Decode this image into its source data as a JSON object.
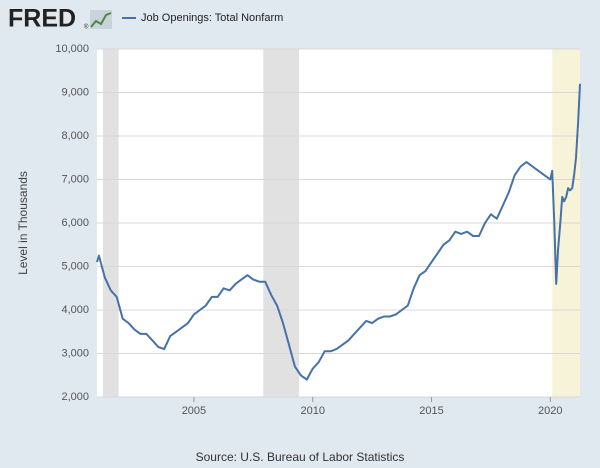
{
  "logo": "FRED",
  "logo_mark": "®",
  "chart_data": {
    "type": "line",
    "y_label": "Level in Thousands",
    "source": "Source: U.S. Bureau of Labor Statistics",
    "grid": true,
    "background": "#e1e9f0",
    "plot_background": "#ffffff",
    "recession_color": "#e1e1e1",
    "recessions": [
      [
        2001.17,
        2001.83
      ],
      [
        2007.92,
        2009.42
      ]
    ],
    "highlight_color": "#f6f3d9",
    "highlight": [
      2020.08,
      2021.25
    ],
    "xlim": [
      2000.92,
      2021.25
    ],
    "xticks": [
      2005,
      2010,
      2015,
      2020
    ],
    "ylim": [
      2000,
      10000
    ],
    "yticks": [
      {
        "value": 2000,
        "label": "2,000"
      },
      {
        "value": 3000,
        "label": "3,000"
      },
      {
        "value": 4000,
        "label": "4,000"
      },
      {
        "value": 5000,
        "label": "5,000"
      },
      {
        "value": 6000,
        "label": "6,000"
      },
      {
        "value": 7000,
        "label": "7,000"
      },
      {
        "value": 8000,
        "label": "8,000"
      },
      {
        "value": 9000,
        "label": "9,000"
      },
      {
        "value": 10000,
        "label": "10,000"
      }
    ],
    "x": [
      2000.92,
      2001.0,
      2001.25,
      2001.5,
      2001.75,
      2002.0,
      2002.25,
      2002.5,
      2002.75,
      2003.0,
      2003.25,
      2003.5,
      2003.75,
      2004.0,
      2004.25,
      2004.5,
      2004.75,
      2005.0,
      2005.25,
      2005.5,
      2005.75,
      2006.0,
      2006.25,
      2006.5,
      2006.75,
      2007.0,
      2007.25,
      2007.5,
      2007.75,
      2008.0,
      2008.25,
      2008.5,
      2008.75,
      2009.0,
      2009.25,
      2009.5,
      2009.75,
      2010.0,
      2010.25,
      2010.5,
      2010.75,
      2011.0,
      2011.25,
      2011.5,
      2011.75,
      2012.0,
      2012.25,
      2012.5,
      2012.75,
      2013.0,
      2013.25,
      2013.5,
      2013.75,
      2014.0,
      2014.25,
      2014.5,
      2014.75,
      2015.0,
      2015.25,
      2015.5,
      2015.75,
      2016.0,
      2016.25,
      2016.5,
      2016.75,
      2017.0,
      2017.25,
      2017.5,
      2017.75,
      2018.0,
      2018.25,
      2018.5,
      2018.75,
      2019.0,
      2019.25,
      2019.5,
      2019.75,
      2020.0,
      2020.08,
      2020.17,
      2020.25,
      2020.33,
      2020.42,
      2020.5,
      2020.58,
      2020.67,
      2020.75,
      2020.83,
      2020.92,
      2021.0,
      2021.08,
      2021.17,
      2021.25
    ],
    "series": [
      {
        "name": "Job Openings: Total Nonfarm",
        "color": "#4572a7",
        "values": [
          5100,
          5250,
          4750,
          4450,
          4300,
          3800,
          3700,
          3550,
          3450,
          3450,
          3300,
          3150,
          3100,
          3400,
          3500,
          3600,
          3700,
          3900,
          4000,
          4100,
          4300,
          4300,
          4500,
          4450,
          4600,
          4700,
          4800,
          4700,
          4650,
          4650,
          4350,
          4100,
          3700,
          3200,
          2700,
          2500,
          2400,
          2650,
          2800,
          3050,
          3050,
          3100,
          3200,
          3300,
          3450,
          3600,
          3750,
          3700,
          3800,
          3850,
          3850,
          3900,
          4000,
          4100,
          4500,
          4800,
          4900,
          5100,
          5300,
          5500,
          5600,
          5800,
          5750,
          5800,
          5700,
          5700,
          6000,
          6200,
          6100,
          6400,
          6700,
          7100,
          7300,
          7400,
          7300,
          7200,
          7100,
          7000,
          7200,
          6000,
          4600,
          5400,
          6000,
          6600,
          6500,
          6600,
          6800,
          6750,
          6800,
          7100,
          7500,
          8300,
          9200
        ]
      }
    ]
  }
}
